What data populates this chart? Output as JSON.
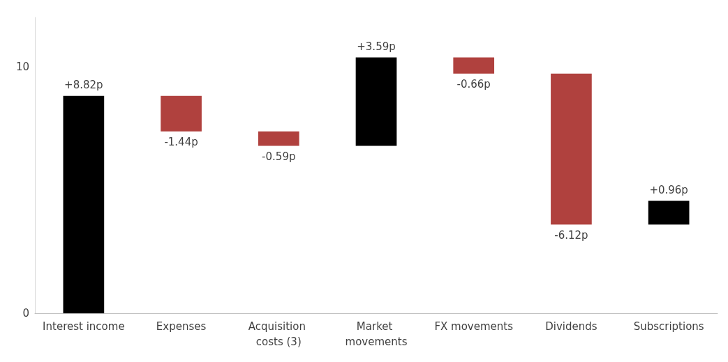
{
  "chart_data": {
    "type": "bar",
    "categories": [
      "Interest income",
      "Expenses",
      "Acquisition costs (3)",
      "Market movements",
      "FX movements",
      "Dividends",
      "Subscriptions"
    ],
    "values": [
      8.82,
      -1.44,
      -0.59,
      3.59,
      -0.66,
      -6.12,
      0.96
    ],
    "base": [
      0,
      8.82,
      7.38,
      6.79,
      10.38,
      9.72,
      3.6
    ],
    "colors": [
      "#000000",
      "#b0413e",
      "#b0413e",
      "#000000",
      "#b0413e",
      "#b0413e",
      "#000000"
    ],
    "value_labels": [
      "+8.82p",
      "-1.44p",
      "-0.59p",
      "+3.59p",
      "-0.66p",
      "-6.12p",
      "+0.96p"
    ],
    "ylim": [
      0,
      12
    ],
    "yticks": [
      0,
      10
    ],
    "grid": false
  }
}
